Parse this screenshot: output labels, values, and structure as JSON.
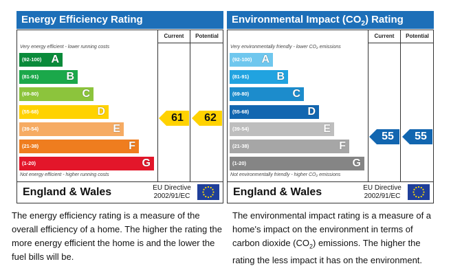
{
  "energy": {
    "title": "Energy Efficiency Rating",
    "col_current": "Current",
    "col_potential": "Potential",
    "top_note": "Very energy efficient - lower running costs",
    "bottom_note": "Not energy efficient - higher running costs",
    "bands": [
      {
        "range": "(92-100)",
        "letter": "A",
        "color": "#0a8a3a"
      },
      {
        "range": "(81-91)",
        "letter": "B",
        "color": "#1ba84a"
      },
      {
        "range": "(69-80)",
        "letter": "C",
        "color": "#8cc43c"
      },
      {
        "range": "(55-68)",
        "letter": "D",
        "color": "#ffd200"
      },
      {
        "range": "(39-54)",
        "letter": "E",
        "color": "#f6ab63"
      },
      {
        "range": "(21-38)",
        "letter": "F",
        "color": "#ef7d1f"
      },
      {
        "range": "(1-20)",
        "letter": "G",
        "color": "#e3162a"
      }
    ],
    "current": "61",
    "potential": "62",
    "arrow_color": "#ffd200",
    "region": "England & Wales",
    "directive_line1": "EU Directive",
    "directive_line2": "2002/91/EC"
  },
  "environment": {
    "title_main": "Environmental Impact (CO",
    "title_sub": "2",
    "title_end": ") Rating",
    "col_current": "Current",
    "col_potential": "Potential",
    "top_note": "Very environmentally friendly - lower CO₂ emissions",
    "bottom_note": "Not environmentally friendly - higher CO₂ emissions",
    "bands": [
      {
        "range": "(92-100)",
        "letter": "A",
        "color": "#6fc7ee"
      },
      {
        "range": "(81-91)",
        "letter": "B",
        "color": "#21a3e0"
      },
      {
        "range": "(69-80)",
        "letter": "C",
        "color": "#1c8ccc"
      },
      {
        "range": "(55-68)",
        "letter": "D",
        "color": "#1266b0"
      },
      {
        "range": "(39-54)",
        "letter": "E",
        "color": "#bebebe"
      },
      {
        "range": "(21-38)",
        "letter": "F",
        "color": "#a6a6a6"
      },
      {
        "range": "(1-20)",
        "letter": "G",
        "color": "#858585"
      }
    ],
    "current": "55",
    "potential": "55",
    "arrow_color": "#1266b0",
    "region": "England & Wales",
    "directive_line1": "EU Directive",
    "directive_line2": "2002/91/EC"
  },
  "descriptions": {
    "energy": "The energy efficiency rating is a measure of the overall efficiency of a home. The higher the rating the more energy efficient the home is and the lower the fuel bills will be.",
    "env_before": "The environmental impact rating is a measure of a home's impact on the environment in terms of carbon dioxide (CO",
    "env_sub": "2",
    "env_after": ") emissions. The higher the rating the less impact it has on the environment."
  }
}
